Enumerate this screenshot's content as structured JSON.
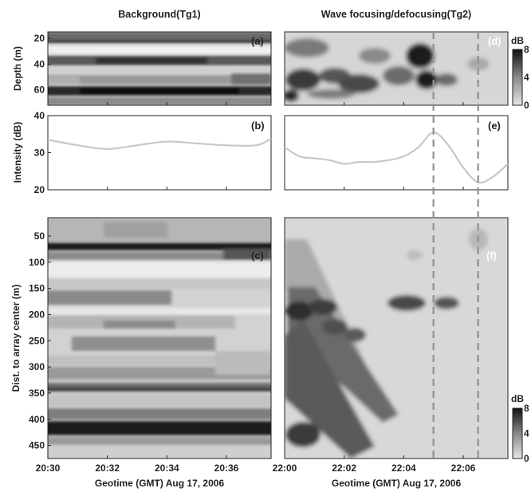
{
  "figure": {
    "left_title": "Background(Tg1)",
    "right_title": "Wave focusing/defocusing(Tg2)",
    "left_xlabel": "Geotime (GMT) Aug 17, 2006",
    "right_xlabel": "Geotime (GMT) Aug 17, 2006",
    "ylabel_a": "Depth (m)",
    "ylabel_b": "Intensity (dB)",
    "ylabel_c": "Dist. to array center (m)",
    "colorbar_unit_top": "dB",
    "colorbar_unit_bottom": "dB",
    "panel_labels": {
      "a": "(a)",
      "b": "(b)",
      "c": "(c)",
      "d": "(d)",
      "e": "(e)",
      "f": "(f)"
    }
  },
  "chart_data": [
    {
      "panel": "a",
      "type": "heatmap",
      "x_ticks": [
        "20:30",
        "20:32",
        "20:34",
        "20:36"
      ],
      "y_ticks": [
        20,
        40,
        60
      ],
      "ylim": [
        15,
        72
      ],
      "color_scale": "gray",
      "bands": [
        {
          "depth": 22,
          "level": 6
        },
        {
          "depth": 33,
          "level": 1
        },
        {
          "depth": 40,
          "level": 5
        },
        {
          "depth": 48,
          "level": 2
        },
        {
          "depth": 56,
          "level": 3
        },
        {
          "depth": 63,
          "level": 8
        }
      ]
    },
    {
      "panel": "b",
      "type": "line",
      "x_ticks": [
        "20:30",
        "20:32",
        "20:34",
        "20:36"
      ],
      "y_ticks": [
        20,
        30,
        40
      ],
      "ylim": [
        20,
        40
      ],
      "x_minutes": [
        0,
        1,
        2,
        3,
        4,
        5,
        6,
        7,
        7.5
      ],
      "values": [
        33.5,
        32,
        31,
        32,
        33,
        32.5,
        32,
        32,
        33.8
      ]
    },
    {
      "panel": "c",
      "type": "heatmap",
      "x_ticks": [
        "20:30",
        "20:32",
        "20:34",
        "20:36"
      ],
      "y_ticks": [
        50,
        100,
        150,
        200,
        250,
        300,
        350,
        400,
        450
      ],
      "ylim": [
        15,
        475
      ],
      "color_scale": "gray",
      "bands": [
        {
          "dist": 70,
          "level": 8
        },
        {
          "dist": 100,
          "level": 3
        },
        {
          "dist": 165,
          "level": 4
        },
        {
          "dist": 220,
          "level": 3
        },
        {
          "dist": 270,
          "level": 3
        },
        {
          "dist": 335,
          "level": 6
        },
        {
          "dist": 410,
          "level": 8
        }
      ]
    },
    {
      "panel": "d",
      "type": "heatmap",
      "x_ticks": [
        "22:00",
        "22:02",
        "22:04",
        "22:06"
      ],
      "ylim": [
        15,
        72
      ],
      "color_scale": "gray",
      "colorbar_ticks": [
        0,
        4,
        8
      ],
      "vertical_markers": [
        "22:05",
        "22:06.5"
      ]
    },
    {
      "panel": "e",
      "type": "line",
      "x_ticks": [
        "22:00",
        "22:02",
        "22:04",
        "22:06"
      ],
      "ylim": [
        20,
        40
      ],
      "x_minutes": [
        0,
        0.5,
        1,
        1.5,
        2,
        2.5,
        3,
        3.5,
        4,
        4.5,
        5,
        5.5,
        6,
        6.5,
        7,
        7.5
      ],
      "values": [
        31.5,
        29,
        28.5,
        28,
        27,
        27.5,
        27.5,
        28,
        29,
        31.5,
        35.5,
        32,
        26,
        22,
        23.5,
        27
      ],
      "vertical_markers": [
        "22:05",
        "22:06.5"
      ]
    },
    {
      "panel": "f",
      "type": "heatmap",
      "x_ticks": [
        "22:00",
        "22:02",
        "22:04",
        "22:06"
      ],
      "ylim": [
        15,
        475
      ],
      "color_scale": "gray",
      "colorbar_ticks": [
        0,
        4,
        8
      ],
      "vertical_markers": [
        "22:05",
        "22:06.5"
      ]
    }
  ]
}
